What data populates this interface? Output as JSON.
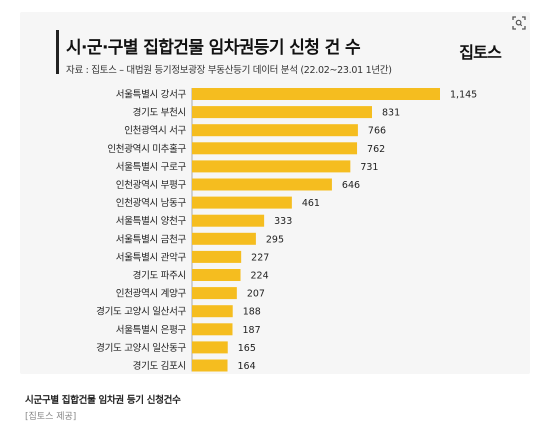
{
  "header": {
    "title": "시·군·구별 집합건물 임차권등기 신청 건 수",
    "subtitle": "자료 : 집토스 – 대법원 등기정보광장 부동산등기 데이터 분석 (22.02~23.01 1년간)",
    "brand": "집토스"
  },
  "footer": {
    "caption": "시군구별 집합건물 임차권 등기 신청건수",
    "credit": "[집토스 제공]"
  },
  "colors": {
    "bar": "#f5bd1f",
    "background": "#f6f6f6"
  },
  "chart_data": {
    "type": "bar",
    "orientation": "horizontal",
    "categories": [
      "서울특별시 강서구",
      "경기도 부천시",
      "인천광역시 서구",
      "인천광역시 미추홀구",
      "서울특별시 구로구",
      "인천광역시 부평구",
      "인천광역시 남동구",
      "서울특별시 양천구",
      "서울특별시 금천구",
      "서울특별시 관악구",
      "경기도 파주시",
      "인천광역시 계양구",
      "경기도 고양시 일산서구",
      "서울특별시 은평구",
      "경기도 고양시 일산동구",
      "경기도 김포시"
    ],
    "values": [
      1145,
      831,
      766,
      762,
      731,
      646,
      461,
      333,
      295,
      227,
      224,
      207,
      188,
      187,
      165,
      164
    ],
    "value_labels": [
      "1,145",
      "831",
      "766",
      "762",
      "731",
      "646",
      "461",
      "333",
      "295",
      "227",
      "224",
      "207",
      "188",
      "187",
      "165",
      "164"
    ],
    "title": "시·군·구별 집합건물 임차권등기 신청 건 수",
    "xlim": [
      0,
      1145
    ],
    "grid": false,
    "legend": "none"
  }
}
